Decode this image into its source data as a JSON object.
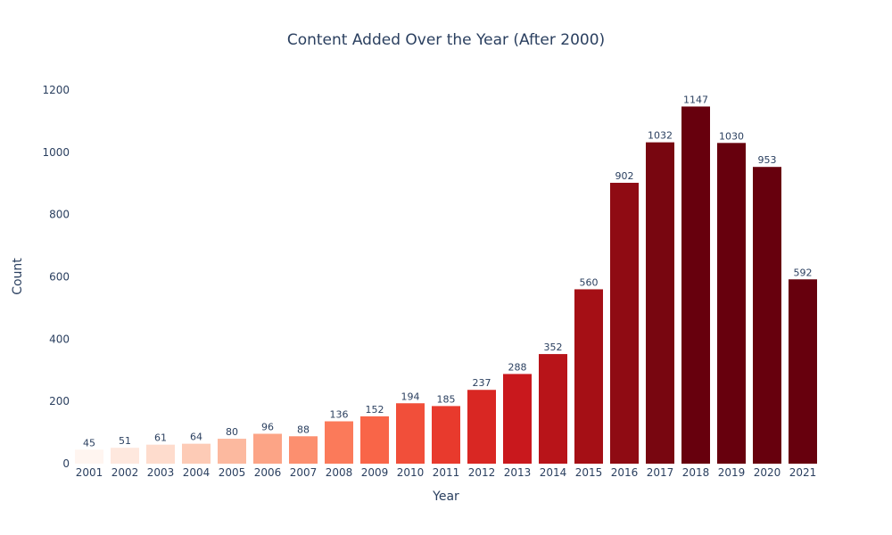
{
  "chart_data": {
    "type": "bar",
    "title": "Content Added Over the Year (After 2000)",
    "xlabel": "Year",
    "ylabel": "Count",
    "ylim": [
      0,
      1260
    ],
    "yticks": [
      0,
      200,
      400,
      600,
      800,
      1000,
      1200
    ],
    "grid": false,
    "categories": [
      "2001",
      "2002",
      "2003",
      "2004",
      "2005",
      "2006",
      "2007",
      "2008",
      "2009",
      "2010",
      "2011",
      "2012",
      "2013",
      "2014",
      "2015",
      "2016",
      "2017",
      "2018",
      "2019",
      "2020",
      "2021"
    ],
    "values": [
      45,
      51,
      61,
      64,
      80,
      96,
      88,
      136,
      152,
      194,
      185,
      237,
      288,
      352,
      560,
      902,
      1032,
      1147,
      1030,
      953,
      592
    ],
    "colorscale": "Reds",
    "colors": [
      "#fff5f0",
      "#fee8de",
      "#fedccd",
      "#fdcbb6",
      "#fcb99f",
      "#fca486",
      "#fc8f6f",
      "#fb7a5a",
      "#f96548",
      "#f14f3a",
      "#e83a2d",
      "#d92723",
      "#c9181d",
      "#b81419",
      "#a50f15",
      "#8f0b13",
      "#780610",
      "#67000d",
      "#67000d",
      "#67000d",
      "#67000d"
    ]
  }
}
